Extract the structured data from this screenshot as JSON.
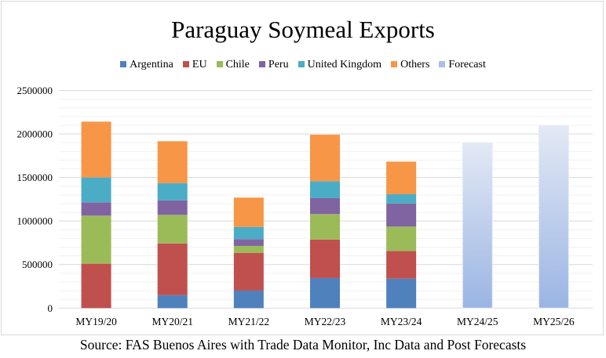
{
  "chart_data": {
    "type": "bar",
    "stacked": true,
    "title": "Paraguay Soymeal Exports",
    "categories": [
      "MY19/20",
      "MY20/21",
      "MY21/22",
      "MY22/23",
      "MY23/24",
      "MY24/25",
      "MY25/26"
    ],
    "series": [
      {
        "name": "Argentina",
        "color": "#4f81bd",
        "values": [
          0,
          149000,
          201000,
          345000,
          338000,
          null,
          null
        ]
      },
      {
        "name": "EU",
        "color": "#c0504d",
        "values": [
          510000,
          594000,
          434000,
          443000,
          319000,
          null,
          null
        ]
      },
      {
        "name": "Chile",
        "color": "#9bbb59",
        "values": [
          552000,
          328000,
          79000,
          292000,
          279000,
          null,
          null
        ]
      },
      {
        "name": "Peru",
        "color": "#8064a2",
        "values": [
          153000,
          167000,
          78000,
          183000,
          266000,
          null,
          null
        ]
      },
      {
        "name": "United Kingdom",
        "color": "#4bacc6",
        "values": [
          285000,
          198000,
          140000,
          195000,
          106000,
          null,
          null
        ]
      },
      {
        "name": "Others",
        "color": "#f79646",
        "values": [
          642000,
          481000,
          337000,
          534000,
          375000,
          null,
          null
        ]
      },
      {
        "name": "Forecast",
        "color": "#a9c0e8",
        "values": [
          null,
          null,
          null,
          null,
          null,
          1900000,
          2100000
        ]
      }
    ],
    "yticks": [
      "0",
      "500000",
      "1000000",
      "1500000",
      "2000000",
      "2500000"
    ],
    "ylim": [
      0,
      2500000
    ],
    "xlabel": "",
    "ylabel": "",
    "legend_position": "top",
    "grid": true
  },
  "source": "Source:  FAS Buenos Aires with Trade Data Monitor, Inc Data and Post Forecasts"
}
